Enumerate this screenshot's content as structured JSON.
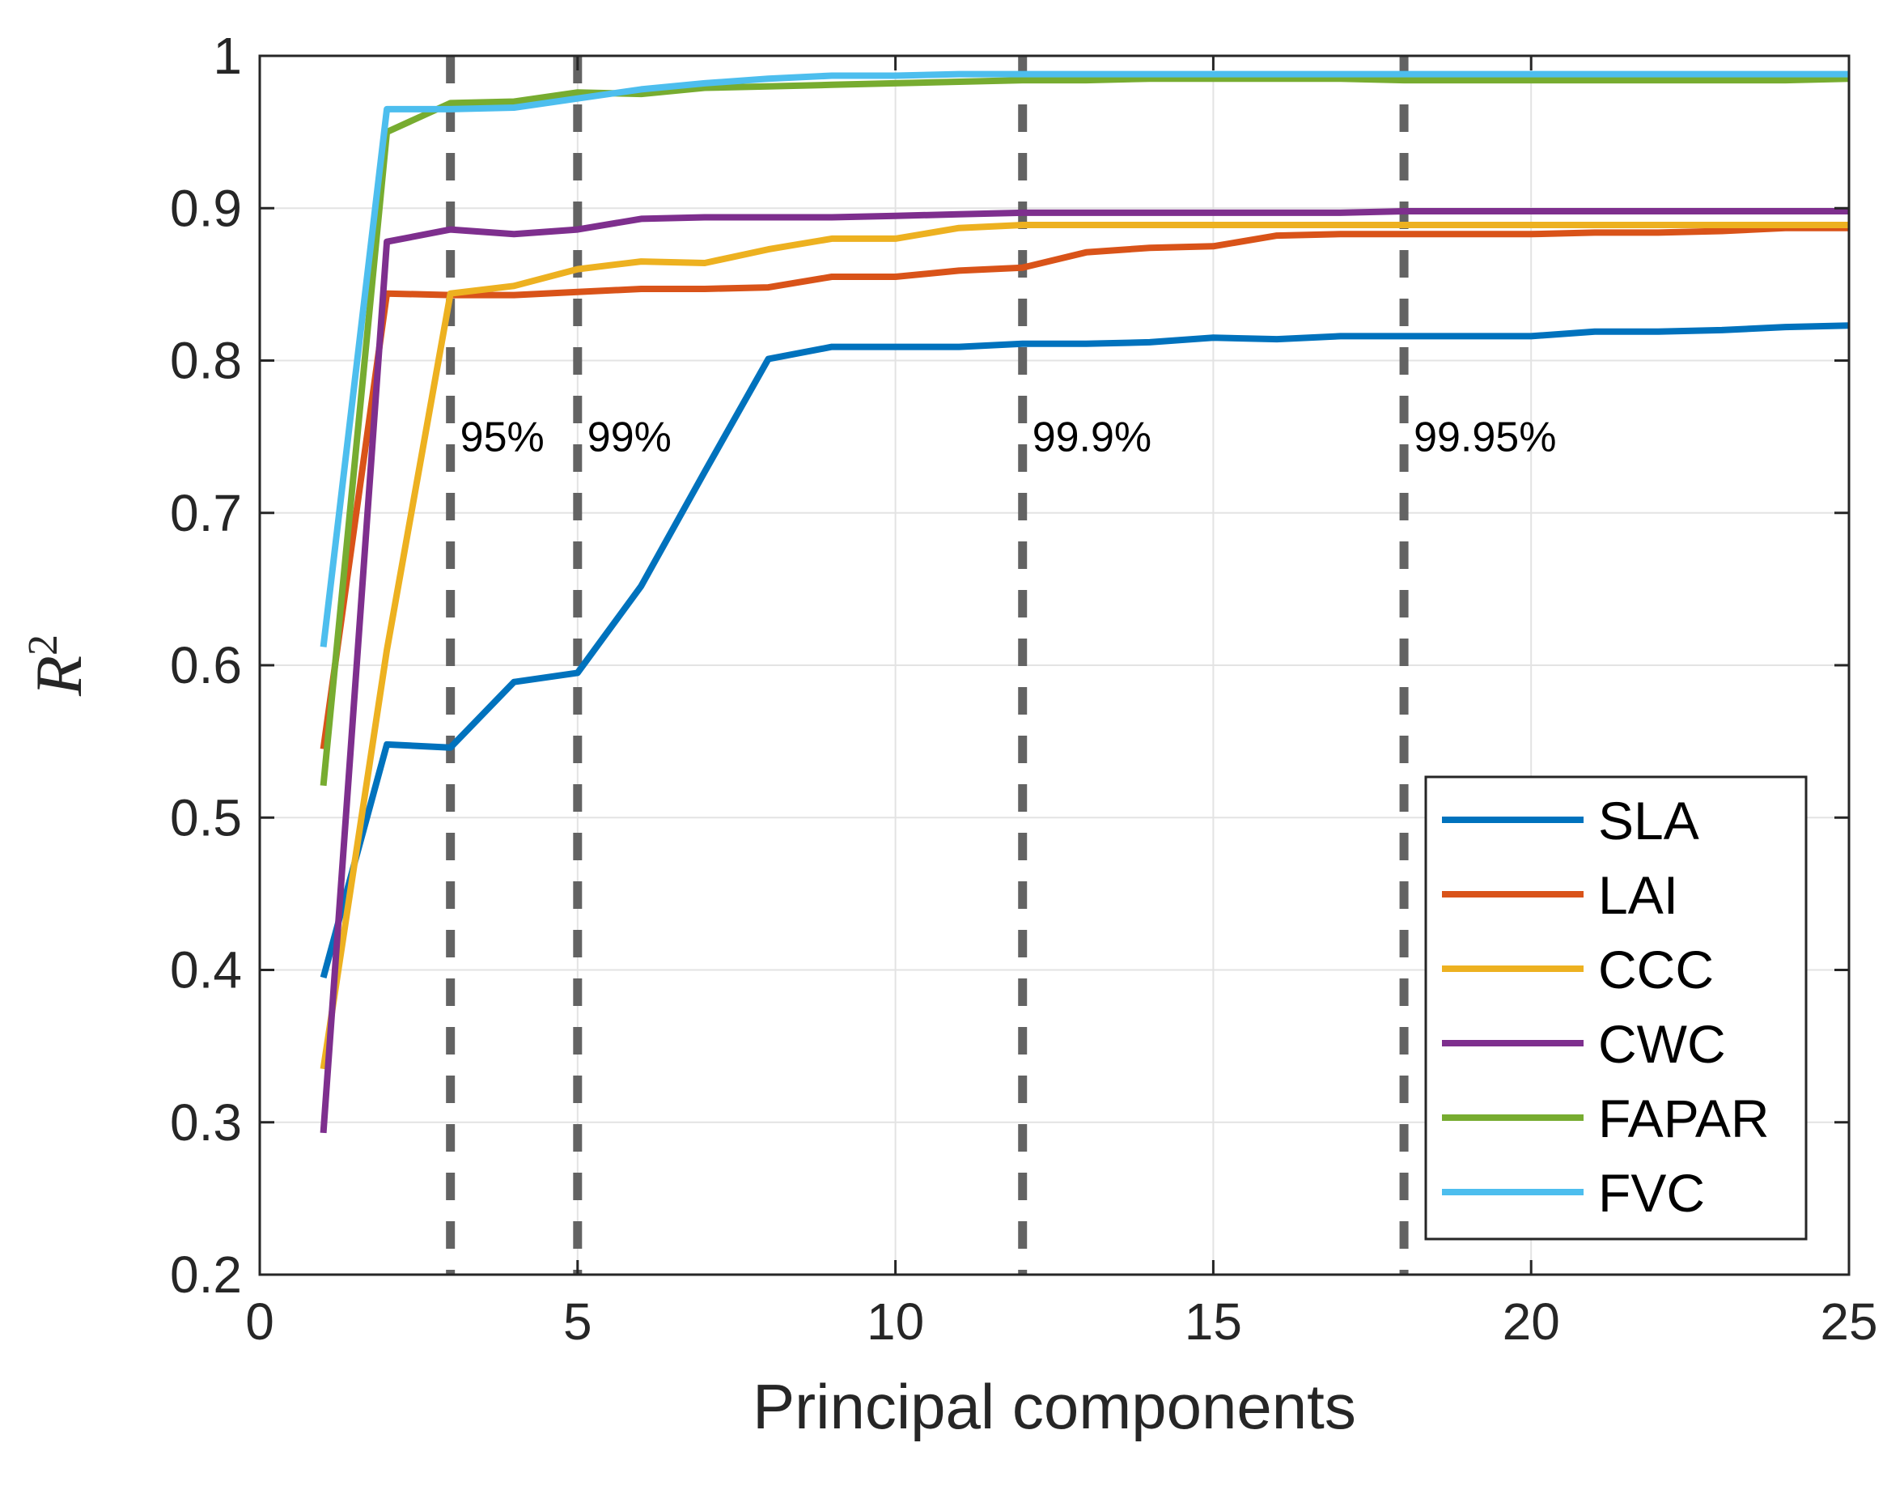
{
  "chart_data": {
    "type": "line",
    "xlabel": "Principal components",
    "ylabel": "R",
    "ylabel_superscript": "2",
    "xlim": [
      0,
      25
    ],
    "ylim": [
      0.2,
      1
    ],
    "xticks": [
      0,
      5,
      10,
      15,
      20,
      25
    ],
    "yticks": [
      0.2,
      0.3,
      0.4,
      0.5,
      0.6,
      0.7,
      0.8,
      0.9,
      1
    ],
    "ytick_labels": [
      "0.2",
      "0.3",
      "0.4",
      "0.5",
      "0.6",
      "0.7",
      "0.8",
      "0.9",
      "1"
    ],
    "grid": true,
    "legend_position": "bottom-right",
    "x": [
      1,
      2,
      3,
      4,
      5,
      6,
      7,
      8,
      9,
      10,
      11,
      12,
      13,
      14,
      15,
      16,
      17,
      18,
      19,
      20,
      21,
      22,
      23,
      24,
      25
    ],
    "series": [
      {
        "name": "SLA",
        "color": "#0072BD",
        "values": [
          0.395,
          0.548,
          0.546,
          0.589,
          0.595,
          0.652,
          0.727,
          0.801,
          0.809,
          0.809,
          0.809,
          0.811,
          0.811,
          0.812,
          0.815,
          0.814,
          0.816,
          0.816,
          0.816,
          0.816,
          0.819,
          0.819,
          0.82,
          0.822,
          0.823
        ]
      },
      {
        "name": "LAI",
        "color": "#D95319",
        "values": [
          0.545,
          0.844,
          0.843,
          0.843,
          0.845,
          0.847,
          0.847,
          0.848,
          0.855,
          0.855,
          0.859,
          0.861,
          0.871,
          0.874,
          0.875,
          0.882,
          0.883,
          0.883,
          0.883,
          0.883,
          0.884,
          0.884,
          0.885,
          0.887,
          0.887
        ]
      },
      {
        "name": "CCC",
        "color": "#EDB120",
        "values": [
          0.335,
          0.61,
          0.844,
          0.849,
          0.86,
          0.865,
          0.864,
          0.873,
          0.88,
          0.88,
          0.887,
          0.889,
          0.889,
          0.889,
          0.889,
          0.889,
          0.889,
          0.889,
          0.889,
          0.889,
          0.889,
          0.889,
          0.889,
          0.889,
          0.889
        ]
      },
      {
        "name": "CWC",
        "color": "#7E2F8E",
        "values": [
          0.293,
          0.878,
          0.886,
          0.883,
          0.886,
          0.893,
          0.894,
          0.894,
          0.894,
          0.895,
          0.896,
          0.897,
          0.897,
          0.897,
          0.897,
          0.897,
          0.897,
          0.898,
          0.898,
          0.898,
          0.898,
          0.898,
          0.898,
          0.898,
          0.898
        ]
      },
      {
        "name": "FAPAR",
        "color": "#77AC30",
        "values": [
          0.521,
          0.95,
          0.969,
          0.97,
          0.976,
          0.975,
          0.979,
          0.98,
          0.981,
          0.982,
          0.983,
          0.984,
          0.984,
          0.985,
          0.985,
          0.985,
          0.985,
          0.984,
          0.984,
          0.984,
          0.984,
          0.984,
          0.984,
          0.984,
          0.985
        ]
      },
      {
        "name": "FVC",
        "color": "#4DBEEE",
        "values": [
          0.612,
          0.965,
          0.965,
          0.966,
          0.972,
          0.978,
          0.982,
          0.985,
          0.987,
          0.987,
          0.988,
          0.988,
          0.988,
          0.988,
          0.988,
          0.988,
          0.988,
          0.988,
          0.988,
          0.988,
          0.988,
          0.988,
          0.988,
          0.988,
          0.988
        ]
      }
    ],
    "thresholds": [
      {
        "x": 3,
        "label": "95%"
      },
      {
        "x": 5,
        "label": "99%"
      },
      {
        "x": 12,
        "label": "99.9%"
      },
      {
        "x": 18,
        "label": "99.95%"
      }
    ],
    "threshold_color": "#636363",
    "threshold_label_y": 0.75
  }
}
